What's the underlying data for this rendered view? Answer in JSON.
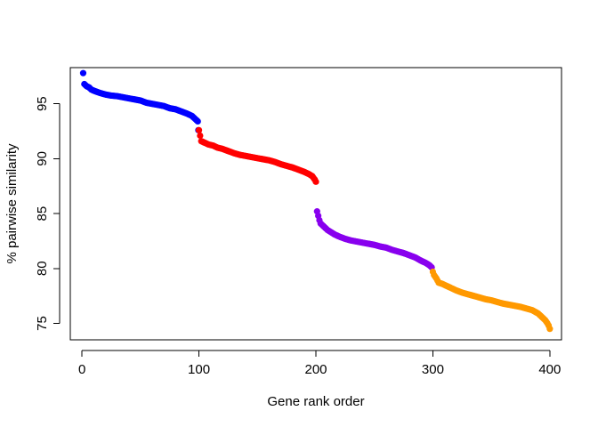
{
  "chart_data": {
    "type": "scatter",
    "title": "",
    "xlabel": "Gene rank order",
    "ylabel": "% pairwise similarity",
    "xlim": [
      -10,
      410
    ],
    "ylim": [
      73.5,
      98.3
    ],
    "xticks": [
      0,
      100,
      200,
      300,
      400
    ],
    "yticks": [
      75,
      80,
      85,
      90,
      95
    ],
    "grid": false,
    "legend": "none",
    "series": [
      {
        "color": "#0000ff",
        "points": [
          [
            1,
            97.8
          ],
          [
            2,
            96.8
          ],
          [
            4,
            96.6
          ],
          [
            6,
            96.5
          ],
          [
            8,
            96.3
          ],
          [
            10,
            96.2
          ],
          [
            15,
            96.0
          ],
          [
            20,
            95.85
          ],
          [
            25,
            95.75
          ],
          [
            30,
            95.7
          ],
          [
            35,
            95.6
          ],
          [
            40,
            95.5
          ],
          [
            45,
            95.4
          ],
          [
            50,
            95.3
          ],
          [
            55,
            95.1
          ],
          [
            60,
            95.0
          ],
          [
            65,
            94.9
          ],
          [
            70,
            94.8
          ],
          [
            75,
            94.6
          ],
          [
            80,
            94.5
          ],
          [
            85,
            94.3
          ],
          [
            90,
            94.1
          ],
          [
            94,
            93.9
          ],
          [
            97,
            93.6
          ],
          [
            99,
            93.4
          ],
          [
            99.5,
            92.6
          ]
        ]
      },
      {
        "color": "#ff0000",
        "points": [
          [
            100,
            92.6
          ],
          [
            102,
            91.6
          ],
          [
            104,
            91.5
          ],
          [
            108,
            91.3
          ],
          [
            112,
            91.2
          ],
          [
            116,
            91.0
          ],
          [
            120,
            90.9
          ],
          [
            125,
            90.7
          ],
          [
            130,
            90.5
          ],
          [
            135,
            90.35
          ],
          [
            140,
            90.25
          ],
          [
            145,
            90.15
          ],
          [
            150,
            90.05
          ],
          [
            155,
            89.95
          ],
          [
            160,
            89.85
          ],
          [
            165,
            89.7
          ],
          [
            170,
            89.5
          ],
          [
            175,
            89.35
          ],
          [
            180,
            89.2
          ],
          [
            185,
            89.0
          ],
          [
            190,
            88.8
          ],
          [
            194,
            88.6
          ],
          [
            197,
            88.4
          ],
          [
            199,
            88.1
          ],
          [
            200,
            87.9
          ]
        ]
      },
      {
        "color": "#8800ee",
        "points": [
          [
            201,
            85.2
          ],
          [
            202,
            84.8
          ],
          [
            203,
            84.4
          ],
          [
            204,
            84.1
          ],
          [
            206,
            83.9
          ],
          [
            208,
            83.7
          ],
          [
            210,
            83.5
          ],
          [
            213,
            83.3
          ],
          [
            216,
            83.1
          ],
          [
            220,
            82.9
          ],
          [
            225,
            82.7
          ],
          [
            230,
            82.55
          ],
          [
            235,
            82.45
          ],
          [
            240,
            82.35
          ],
          [
            245,
            82.25
          ],
          [
            250,
            82.15
          ],
          [
            255,
            82.0
          ],
          [
            260,
            81.9
          ],
          [
            265,
            81.7
          ],
          [
            270,
            81.55
          ],
          [
            275,
            81.4
          ],
          [
            280,
            81.2
          ],
          [
            285,
            81.0
          ],
          [
            290,
            80.7
          ],
          [
            294,
            80.5
          ],
          [
            297,
            80.3
          ],
          [
            299,
            80.1
          ]
        ]
      },
      {
        "color": "#ff9900",
        "points": [
          [
            300,
            79.7
          ],
          [
            301,
            79.4
          ],
          [
            303,
            79.1
          ],
          [
            305,
            78.7
          ],
          [
            308,
            78.6
          ],
          [
            312,
            78.4
          ],
          [
            316,
            78.2
          ],
          [
            320,
            78.0
          ],
          [
            325,
            77.8
          ],
          [
            330,
            77.65
          ],
          [
            335,
            77.5
          ],
          [
            340,
            77.35
          ],
          [
            345,
            77.2
          ],
          [
            350,
            77.1
          ],
          [
            355,
            76.95
          ],
          [
            360,
            76.8
          ],
          [
            365,
            76.7
          ],
          [
            370,
            76.6
          ],
          [
            375,
            76.5
          ],
          [
            380,
            76.35
          ],
          [
            385,
            76.2
          ],
          [
            390,
            75.9
          ],
          [
            393,
            75.6
          ],
          [
            396,
            75.3
          ],
          [
            398,
            75.0
          ],
          [
            399,
            74.8
          ],
          [
            400,
            74.5
          ]
        ]
      }
    ]
  }
}
